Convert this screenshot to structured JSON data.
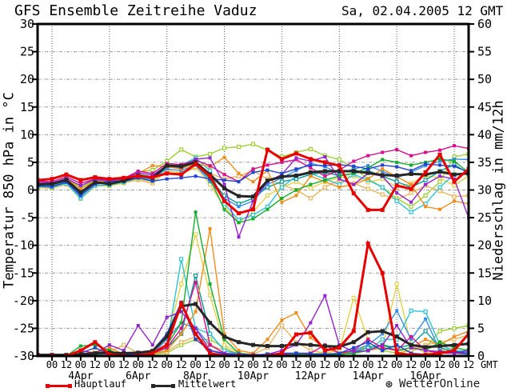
{
  "header": {
    "title": "GFS Ensemble Zeitreihe Vaduz",
    "datetime": "Sa, 02.04.2005 12 GMT"
  },
  "legend": {
    "hauptlauf_label": "Hauptlauf",
    "mittelwert_label": "Mittelwert",
    "hauptlauf_color": "#e60000",
    "mittelwert_color": "#262626"
  },
  "watermark": {
    "icon": "⊛",
    "label": "WetterOnline"
  },
  "chart_data": {
    "type": "line",
    "title": "GFS Ensemble Zeitreihe Vaduz",
    "run": "Sa, 02.04.2005 12 GMT",
    "grid": true,
    "y_left": {
      "label": "Temperatur 850 hPa in °C",
      "min": -30,
      "max": 30,
      "step": 5,
      "ticks": [
        30,
        25,
        20,
        15,
        10,
        5,
        0,
        -5,
        -10,
        -15,
        -20,
        -25,
        -30
      ]
    },
    "y_right": {
      "label": "Niederschlag in mm/12h",
      "min": 0,
      "max": 60,
      "step": 5,
      "ticks": [
        60,
        55,
        50,
        45,
        40,
        35,
        30,
        25,
        20,
        15,
        10,
        5,
        0
      ]
    },
    "x_axis": {
      "start": "02.04.2005 12 GMT",
      "step_hours": 12,
      "n_points": 31,
      "unit_label": "GMT",
      "tick_labels": [
        "00",
        "12",
        "00",
        "12",
        "00",
        "12",
        "00",
        "12",
        "00",
        "12",
        "00",
        "12",
        "00",
        "12",
        "00",
        "12",
        "00",
        "12",
        "00",
        "12",
        "00",
        "12",
        "00",
        "12",
        "00",
        "12",
        "00",
        "12",
        "00",
        "12"
      ],
      "date_labels": [
        {
          "label": "4Apr",
          "index": 3
        },
        {
          "label": "6Apr",
          "index": 7
        },
        {
          "label": "8Apr",
          "index": 11
        },
        {
          "label": "10Apr",
          "index": 15
        },
        {
          "label": "12Apr",
          "index": 19
        },
        {
          "label": "14Apr",
          "index": 23
        },
        {
          "label": "16Apr",
          "index": 27
        }
      ],
      "vgrid_indices": [
        1,
        5,
        9,
        13,
        17,
        21,
        25,
        29
      ]
    },
    "series": [
      {
        "name": "member-lightgreen",
        "color": "#9ccf31",
        "width": 1.4,
        "hollow": true,
        "temperature": [
          1.3,
          1.2,
          2.2,
          0.5,
          1.8,
          1.5,
          2.0,
          3.2,
          3.6,
          5.2,
          7.3,
          6.0,
          6.5,
          7.6,
          7.8,
          8.3,
          7.2,
          6.0,
          6.8,
          7.4,
          6.2,
          5.5,
          4.0,
          2.0,
          0.5,
          -1.5,
          -3.0,
          -1.0,
          1.5,
          6.0,
          6.5
        ],
        "precipitation": [
          0,
          0,
          0,
          0.2,
          0.3,
          0.4,
          0.2,
          0.2,
          0.3,
          0.5,
          2.0,
          3.0,
          3.0,
          1.5,
          0.3,
          0.2,
          0.2,
          0.2,
          0.3,
          0.3,
          0.2,
          0.3,
          0.5,
          2.0,
          1.0,
          0.5,
          1.0,
          1.5,
          4.5,
          5.0,
          5.5
        ]
      },
      {
        "name": "member-tan",
        "color": "#e7b45c",
        "width": 1.4,
        "hollow": true,
        "temperature": [
          0.4,
          0.3,
          1.0,
          -1.0,
          0.9,
          0.7,
          1.3,
          1.8,
          1.2,
          3.6,
          3.0,
          4.0,
          3.0,
          2.0,
          2.5,
          3.5,
          2.0,
          1.0,
          0.0,
          -1.5,
          0.5,
          1.8,
          1.2,
          0.2,
          -0.8,
          -1.8,
          -0.5,
          0.8,
          -0.2,
          -1.2,
          -1.0
        ],
        "precipitation": [
          0,
          0,
          0,
          0.2,
          0.4,
          0.8,
          2.0,
          0.5,
          0.3,
          0.8,
          2.5,
          3.5,
          2.0,
          1.0,
          0.5,
          0.3,
          1.5,
          5.5,
          2.5,
          1.0,
          0.5,
          0.3,
          0.5,
          1.0,
          1.5,
          1.0,
          1.0,
          2.0,
          2.5,
          3.0,
          3.8
        ]
      },
      {
        "name": "member-yellow",
        "color": "#e3d24b",
        "width": 1.4,
        "hollow": true,
        "temperature": [
          0.5,
          0.4,
          1.1,
          -1.6,
          0.7,
          0.8,
          1.2,
          2.0,
          1.5,
          3.4,
          3.2,
          4.2,
          1.0,
          -3.0,
          -5.8,
          -4.0,
          -1.0,
          0.5,
          1.5,
          0.3,
          1.5,
          2.2,
          2.5,
          1.4,
          2.0,
          0.5,
          1.2,
          2.6,
          2.2,
          0.8,
          2.6
        ],
        "precipitation": [
          0,
          0,
          0,
          0,
          1.0,
          0.5,
          0.2,
          0.3,
          0.5,
          3.0,
          13.0,
          22.0,
          11.0,
          2.0,
          0.5,
          0.3,
          0.2,
          0.3,
          0.5,
          0.4,
          0.5,
          1.0,
          10.5,
          3.0,
          1.5,
          13.0,
          2.0,
          0.5,
          1.0,
          1.5,
          1.0
        ]
      },
      {
        "name": "member-teal",
        "color": "#0a9a96",
        "width": 1.4,
        "hollow": true,
        "temperature": [
          0.8,
          0.7,
          1.6,
          -0.7,
          1.1,
          1.2,
          1.6,
          2.5,
          2.1,
          4.2,
          4.0,
          4.6,
          2.0,
          -1.0,
          -2.5,
          -1.5,
          0.5,
          1.5,
          2.0,
          2.8,
          3.2,
          2.6,
          3.0,
          3.5,
          2.5,
          1.5,
          0.5,
          1.8,
          3.4,
          4.6,
          3.0
        ],
        "precipitation": [
          0,
          0,
          0,
          0,
          0.3,
          0.6,
          0.2,
          0.2,
          0.4,
          1.5,
          4.0,
          14.5,
          4.0,
          1.0,
          0.4,
          0.2,
          0.3,
          0.2,
          0.4,
          0.3,
          0.2,
          0.4,
          0.8,
          1.5,
          2.0,
          1.5,
          2.0,
          4.5,
          1.5,
          0.8,
          1.0
        ]
      },
      {
        "name": "member-cyan",
        "color": "#2cc3d4",
        "width": 1.4,
        "hollow": true,
        "temperature": [
          0.6,
          0.5,
          1.2,
          -1.5,
          0.8,
          0.9,
          1.4,
          2.2,
          1.8,
          4.0,
          4.5,
          5.8,
          3.5,
          -2.5,
          -5.4,
          -4.5,
          -3.0,
          0.5,
          2.5,
          3.0,
          2.0,
          1.0,
          2.8,
          1.8,
          0.5,
          -2.0,
          -4.0,
          -2.5,
          0.5,
          2.8,
          3.0
        ],
        "precipitation": [
          0,
          0,
          0,
          0,
          0.2,
          0.5,
          0.3,
          0.2,
          0.3,
          2.0,
          17.5,
          5.0,
          4.0,
          1.0,
          0.3,
          0.2,
          0.2,
          0.3,
          0.3,
          0.4,
          0.3,
          0.3,
          0.5,
          1.0,
          3.0,
          3.0,
          8.2,
          8.0,
          2.0,
          1.0,
          0.8
        ]
      },
      {
        "name": "member-skyblue",
        "color": "#3b8fe8",
        "width": 1.4,
        "hollow": false,
        "temperature": [
          0.9,
          0.8,
          1.5,
          -1.2,
          1.2,
          1.3,
          1.8,
          2.4,
          2.0,
          3.8,
          3.5,
          4.5,
          1.5,
          -1.5,
          -3.0,
          -2.0,
          1.0,
          2.2,
          3.5,
          4.8,
          4.2,
          3.0,
          3.8,
          4.4,
          3.4,
          2.2,
          3.2,
          4.4,
          5.2,
          5.6,
          5.5
        ],
        "precipitation": [
          0,
          0,
          0,
          0.2,
          0.3,
          0.8,
          0.2,
          0.3,
          0.4,
          3.0,
          6.0,
          5.0,
          2.0,
          0.5,
          0.3,
          0.2,
          0.2,
          0.3,
          0.4,
          0.3,
          0.4,
          0.3,
          1.0,
          2.0,
          4.0,
          8.2,
          3.0,
          6.7,
          1.0,
          0.5,
          0.3
        ]
      },
      {
        "name": "member-orange",
        "color": "#ef8e1b",
        "width": 1.4,
        "hollow": false,
        "temperature": [
          1.2,
          1.1,
          2.0,
          0.2,
          1.6,
          1.4,
          1.9,
          3.0,
          4.4,
          4.2,
          3.8,
          4.8,
          4.2,
          5.9,
          3.0,
          1.5,
          3.5,
          -2.2,
          -1.0,
          2.5,
          1.5,
          0.5,
          1.0,
          2.0,
          3.8,
          2.4,
          1.0,
          -3.0,
          -3.5,
          -2.0,
          -2.5
        ],
        "precipitation": [
          0,
          0,
          0,
          0.3,
          0.5,
          1.5,
          0.3,
          0.2,
          0.4,
          1.0,
          4.0,
          8.0,
          23.0,
          4.0,
          1.0,
          0.5,
          3.0,
          6.5,
          7.8,
          3.3,
          1.5,
          0.5,
          0.5,
          1.0,
          1.5,
          1.0,
          1.5,
          3.0,
          2.0,
          3.5,
          4.5
        ]
      },
      {
        "name": "member-green",
        "color": "#14ad2e",
        "width": 1.4,
        "hollow": false,
        "temperature": [
          1.0,
          0.9,
          1.7,
          -0.5,
          1.3,
          1.0,
          1.5,
          2.8,
          2.4,
          4.6,
          4.4,
          5.2,
          2.0,
          -3.5,
          -5.9,
          -5.2,
          -3.5,
          -1.5,
          0.0,
          1.0,
          1.8,
          2.5,
          3.0,
          4.0,
          5.5,
          5.0,
          4.5,
          5.0,
          5.6,
          5.2,
          3.2
        ],
        "precipitation": [
          0,
          0,
          0,
          1.8,
          2.0,
          1.0,
          0.2,
          0.3,
          0.5,
          2.0,
          6.0,
          26.0,
          13.0,
          3.0,
          0.5,
          0.2,
          0.2,
          0.3,
          0.3,
          0.2,
          0.3,
          0.3,
          0.5,
          1.0,
          2.0,
          1.0,
          1.5,
          1.0,
          2.5,
          1.5,
          1.0
        ]
      },
      {
        "name": "member-magenta",
        "color": "#d60f8d",
        "width": 1.4,
        "hollow": false,
        "temperature": [
          1.6,
          1.5,
          2.4,
          1.2,
          2.0,
          1.7,
          2.1,
          3.4,
          3.0,
          4.8,
          4.6,
          5.4,
          4.4,
          2.8,
          1.5,
          3.8,
          4.5,
          5.0,
          5.5,
          4.0,
          2.5,
          3.6,
          5.2,
          6.2,
          6.8,
          7.3,
          6.2,
          6.8,
          7.2,
          8.0,
          7.5
        ],
        "precipitation": [
          0,
          0,
          0,
          1.0,
          0.5,
          0.3,
          0.2,
          0.3,
          0.5,
          1.5,
          5.0,
          13.3,
          2.0,
          0.5,
          0.3,
          0.2,
          0.3,
          0.3,
          0.5,
          0.5,
          2.0,
          0.5,
          1.0,
          3.0,
          1.5,
          1.0,
          3.5,
          1.0,
          0.5,
          0.5,
          0.5
        ]
      },
      {
        "name": "member-purple",
        "color": "#9424cc",
        "width": 1.4,
        "hollow": false,
        "temperature": [
          1.4,
          1.3,
          2.1,
          0.8,
          1.9,
          1.6,
          2.0,
          3.1,
          2.7,
          4.4,
          4.1,
          5.6,
          5.8,
          1.0,
          -8.5,
          -2.0,
          1.5,
          2.8,
          5.8,
          5.2,
          6.0,
          2.0,
          1.0,
          3.0,
          2.5,
          -0.5,
          -2.2,
          1.0,
          2.5,
          2.0,
          -5.0
        ],
        "precipitation": [
          0,
          0,
          0,
          0.3,
          0.5,
          2.0,
          1.0,
          5.5,
          2.0,
          7.0,
          8.0,
          5.0,
          1.0,
          0.5,
          0.3,
          0.2,
          0.3,
          1.0,
          2.0,
          6.0,
          10.9,
          2.0,
          0.8,
          1.0,
          2.0,
          5.5,
          1.5,
          1.0,
          0.8,
          0.5,
          1.0
        ]
      },
      {
        "name": "member-blue",
        "color": "#2143cf",
        "width": 1.4,
        "hollow": false,
        "temperature": [
          0.7,
          0.6,
          1.4,
          -0.9,
          1.0,
          1.6,
          1.5,
          2.2,
          1.6,
          2.0,
          2.2,
          2.5,
          2.0,
          1.8,
          1.5,
          3.2,
          3.6,
          3.0,
          3.8,
          4.5,
          4.4,
          4.6,
          4.3,
          3.8,
          4.5,
          4.2,
          3.5,
          4.7,
          4.5,
          4.3,
          3.2
        ],
        "precipitation": [
          0,
          0,
          0,
          0.5,
          1.5,
          0.3,
          0.2,
          0.5,
          1.0,
          4.0,
          9.7,
          3.0,
          1.0,
          0.3,
          0.2,
          0.2,
          0.3,
          0.5,
          0.5,
          0.4,
          0.3,
          0.5,
          1.5,
          2.5,
          1.0,
          2.0,
          0.5,
          0.3,
          0.5,
          0.8,
          0.5
        ]
      },
      {
        "name": "mittelwert",
        "color": "#262626",
        "width": 3,
        "hollow": false,
        "temperature": [
          1.0,
          1.1,
          1.8,
          -0.4,
          1.4,
          1.1,
          1.7,
          2.6,
          2.2,
          4.4,
          4.3,
          5.0,
          2.8,
          0.3,
          -1.1,
          -1.2,
          1.7,
          2.4,
          2.6,
          3.2,
          3.4,
          3.4,
          3.4,
          3.1,
          2.7,
          2.6,
          2.9,
          2.8,
          3.3,
          2.8,
          3.0
        ],
        "precipitation": [
          0.2,
          0.2,
          0.2,
          0.3,
          0.5,
          0.6,
          0.5,
          0.6,
          0.9,
          3.5,
          9.0,
          9.4,
          6.0,
          3.5,
          2.5,
          2.0,
          1.8,
          1.8,
          2.2,
          2.0,
          1.8,
          1.7,
          2.5,
          4.3,
          4.5,
          3.5,
          2.0,
          1.6,
          1.8,
          2.0,
          2.2
        ]
      },
      {
        "name": "hauptlauf",
        "color": "#e60000",
        "width": 3,
        "hollow": false,
        "temperature": [
          1.8,
          2.0,
          2.8,
          1.8,
          2.3,
          2.0,
          2.2,
          2.5,
          2.3,
          3.0,
          2.8,
          4.7,
          2.5,
          -2.0,
          -4.2,
          -3.5,
          7.3,
          5.6,
          6.6,
          5.6,
          5.0,
          4.4,
          -0.6,
          -3.6,
          -3.6,
          0.8,
          0.2,
          3.2,
          6.4,
          1.5,
          3.8
        ],
        "precipitation": [
          0,
          0,
          0,
          1.0,
          2.5,
          0.3,
          0,
          0,
          0.5,
          2.0,
          9.5,
          4.0,
          0.5,
          0,
          0,
          0,
          0,
          0.5,
          3.9,
          4.2,
          1.0,
          1.5,
          4.5,
          20.3,
          15.0,
          0.5,
          0.2,
          0.2,
          0.5,
          1.0,
          4.0
        ]
      }
    ]
  }
}
